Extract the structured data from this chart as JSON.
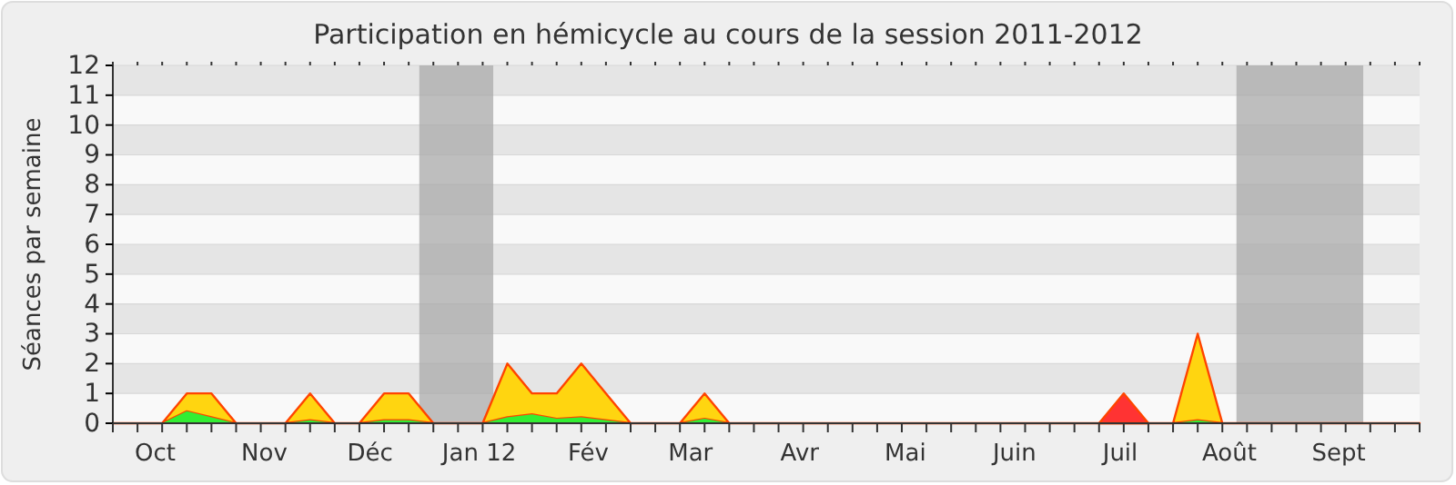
{
  "chart_data": {
    "type": "area",
    "title": "Participation en hémicycle au cours de la session 2011-2012",
    "ylabel": "Séances par semaine",
    "x": [
      "2011-09-19",
      "2011-09-26",
      "2011-10-03",
      "2011-10-10",
      "2011-10-17",
      "2011-10-24",
      "2011-10-31",
      "2011-11-07",
      "2011-11-14",
      "2011-11-21",
      "2011-11-28",
      "2011-12-05",
      "2011-12-12",
      "2011-12-19",
      "2011-12-26",
      "2012-01-02",
      "2012-01-09",
      "2012-01-16",
      "2012-01-23",
      "2012-01-30",
      "2012-02-06",
      "2012-02-13",
      "2012-02-20",
      "2012-02-27",
      "2012-03-05",
      "2012-03-12",
      "2012-03-19",
      "2012-03-26",
      "2012-04-02",
      "2012-04-09",
      "2012-04-16",
      "2012-04-23",
      "2012-04-30",
      "2012-05-07",
      "2012-05-14",
      "2012-05-21",
      "2012-05-28",
      "2012-06-04",
      "2012-06-11",
      "2012-06-18",
      "2012-06-25",
      "2012-07-02",
      "2012-07-09",
      "2012-07-16",
      "2012-07-23",
      "2012-07-30",
      "2012-08-06",
      "2012-08-13",
      "2012-08-20",
      "2012-08-27",
      "2012-09-03",
      "2012-09-10",
      "2012-09-17",
      "2012-09-24"
    ],
    "series": [
      {
        "color": "#33ee33",
        "values": [
          0,
          0,
          0,
          0.4,
          0.2,
          0,
          0,
          0,
          0.1,
          0,
          0,
          0.1,
          0.1,
          0,
          0,
          0,
          0.2,
          0.3,
          0.15,
          0.2,
          0.1,
          0,
          0,
          0,
          0.15,
          0,
          0,
          0,
          0,
          0,
          0,
          0,
          0,
          0,
          0,
          0,
          0,
          0,
          0,
          0,
          0,
          0,
          0,
          0,
          0.1,
          0,
          0,
          0,
          0,
          0,
          0,
          0,
          0,
          0
        ]
      },
      {
        "color": "#ffd510",
        "values": [
          0,
          0,
          0,
          0.6,
          0.8,
          0,
          0,
          0,
          0.9,
          0,
          0,
          0.9,
          0.9,
          0,
          0,
          0,
          1.8,
          0.7,
          0.85,
          1.8,
          0.9,
          0,
          0,
          0,
          0.85,
          0,
          0,
          0,
          0,
          0,
          0,
          0,
          0,
          0,
          0,
          0,
          0,
          0,
          0,
          0,
          0,
          0,
          0,
          0,
          2.9,
          0,
          0,
          0,
          0,
          0,
          0,
          0,
          0,
          0
        ]
      },
      {
        "color": "#ff3333",
        "values": [
          null,
          null,
          null,
          null,
          null,
          null,
          null,
          null,
          null,
          null,
          null,
          null,
          null,
          null,
          null,
          null,
          null,
          null,
          null,
          null,
          null,
          null,
          null,
          null,
          null,
          null,
          null,
          null,
          null,
          null,
          null,
          null,
          null,
          null,
          null,
          null,
          null,
          null,
          null,
          null,
          0,
          1,
          0,
          null,
          null,
          null,
          null,
          null,
          null,
          null,
          null,
          null,
          null,
          null
        ]
      }
    ],
    "stacked": true,
    "xlim": [
      "2011-09-19",
      "2012-09-24"
    ],
    "xticks": [
      {
        "value": "2011-09-19",
        "label": null
      },
      {
        "value": "2011-09-26",
        "label": null
      },
      {
        "value": "2011-10-03",
        "label": null
      },
      {
        "value": "2011-10-10",
        "label": null
      },
      {
        "value": "2011-10-17",
        "label": null
      },
      {
        "value": "2011-10-24",
        "label": null
      },
      {
        "value": "2011-10-31",
        "label": null
      },
      {
        "value": "2011-11-07",
        "label": null
      },
      {
        "value": "2011-11-14",
        "label": null
      },
      {
        "value": "2011-11-21",
        "label": null
      },
      {
        "value": "2011-11-28",
        "label": null
      },
      {
        "value": "2011-12-05",
        "label": null
      },
      {
        "value": "2011-12-12",
        "label": null
      },
      {
        "value": "2011-12-19",
        "label": null
      },
      {
        "value": "2011-12-26",
        "label": null
      },
      {
        "value": "2012-01-02",
        "label": null
      },
      {
        "value": "2012-01-09",
        "label": null
      },
      {
        "value": "2012-01-16",
        "label": null
      },
      {
        "value": "2012-01-23",
        "label": null
      },
      {
        "value": "2012-01-30",
        "label": null
      },
      {
        "value": "2012-02-06",
        "label": null
      },
      {
        "value": "2012-02-13",
        "label": null
      },
      {
        "value": "2012-02-20",
        "label": null
      },
      {
        "value": "2012-02-27",
        "label": null
      },
      {
        "value": "2012-03-05",
        "label": null
      },
      {
        "value": "2012-03-12",
        "label": null
      },
      {
        "value": "2012-03-19",
        "label": null
      },
      {
        "value": "2012-03-26",
        "label": null
      },
      {
        "value": "2012-04-02",
        "label": null
      },
      {
        "value": "2012-04-09",
        "label": null
      },
      {
        "value": "2012-04-16",
        "label": null
      },
      {
        "value": "2012-04-23",
        "label": null
      },
      {
        "value": "2012-04-30",
        "label": null
      },
      {
        "value": "2012-05-07",
        "label": null
      },
      {
        "value": "2012-05-14",
        "label": null
      },
      {
        "value": "2012-05-21",
        "label": null
      },
      {
        "value": "2012-05-28",
        "label": null
      },
      {
        "value": "2012-06-04",
        "label": null
      },
      {
        "value": "2012-06-11",
        "label": null
      },
      {
        "value": "2012-06-18",
        "label": null
      },
      {
        "value": "2012-06-25",
        "label": null
      },
      {
        "value": "2012-07-02",
        "label": null
      },
      {
        "value": "2012-07-09",
        "label": null
      },
      {
        "value": "2012-07-16",
        "label": null
      },
      {
        "value": "2012-07-23",
        "label": null
      },
      {
        "value": "2012-07-30",
        "label": null
      },
      {
        "value": "2012-08-06",
        "label": null
      },
      {
        "value": "2012-08-13",
        "label": null
      },
      {
        "value": "2012-08-20",
        "label": null
      },
      {
        "value": "2012-08-27",
        "label": null
      },
      {
        "value": "2012-09-03",
        "label": null
      },
      {
        "value": "2012-09-10",
        "label": null
      },
      {
        "value": "2012-09-17",
        "label": null
      },
      {
        "value": "2012-09-24",
        "label": null
      },
      {
        "value": "2011-10-01",
        "label": "Oct"
      },
      {
        "value": "2011-11-01",
        "label": "Nov"
      },
      {
        "value": "2011-12-01",
        "label": "Déc"
      },
      {
        "value": "2012-01-01",
        "label": "Jan 12"
      },
      {
        "value": "2012-02-01",
        "label": "Fév"
      },
      {
        "value": "2012-03-01",
        "label": "Mar"
      },
      {
        "value": "2012-04-01",
        "label": "Avr"
      },
      {
        "value": "2012-05-01",
        "label": "Mai"
      },
      {
        "value": "2012-06-01",
        "label": "Juin"
      },
      {
        "value": "2012-07-01",
        "label": "Juil"
      },
      {
        "value": "2012-08-01",
        "label": "Août"
      },
      {
        "value": "2012-09-01",
        "label": "Sept"
      }
    ],
    "ylim": [
      0,
      12
    ],
    "yticks": [
      0,
      1,
      2,
      3,
      4,
      5,
      6,
      7,
      8,
      9,
      10,
      11,
      12
    ],
    "grid": "y",
    "bands": [
      {
        "axis": "x",
        "from": "2011-12-15",
        "to": "2012-01-05",
        "color": "#aaaaaa"
      },
      {
        "axis": "x",
        "from": "2012-08-03",
        "to": "2012-09-08",
        "color": "#aaaaaa"
      }
    ]
  }
}
